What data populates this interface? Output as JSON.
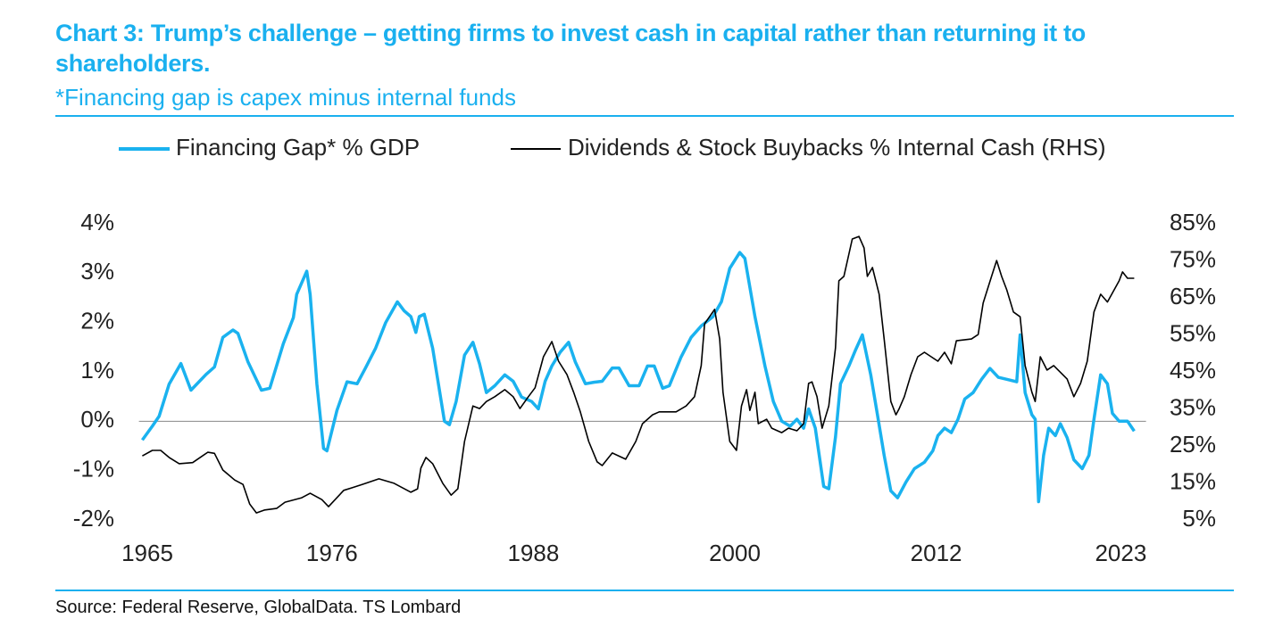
{
  "chart_data": {
    "type": "line",
    "title": "Chart 3: Trump’s challenge – getting firms to invest cash in capital rather than returning it to shareholders.",
    "subtitle": "*Financing gap is capex minus internal funds",
    "source": "Source: Federal Reserve, GlobalData. TS Lombard",
    "legend": "top",
    "xlim": [
      1964.5,
      2024.5
    ],
    "xticks": [
      1965,
      1976,
      1988,
      2000,
      2012,
      2023
    ],
    "ylim": [
      -2,
      4
    ],
    "yticks": [
      {
        "value": 4,
        "label": "4%"
      },
      {
        "value": 3,
        "label": "3%"
      },
      {
        "value": 2,
        "label": "2%"
      },
      {
        "value": 1,
        "label": "1%"
      },
      {
        "value": 0,
        "label": "0%"
      },
      {
        "value": -1,
        "label": "-1%"
      },
      {
        "value": -2,
        "label": "-2%"
      }
    ],
    "y2lim": [
      5,
      85
    ],
    "y2ticks": [
      {
        "value": 85,
        "label": "85%"
      },
      {
        "value": 75,
        "label": "75%"
      },
      {
        "value": 65,
        "label": "65%"
      },
      {
        "value": 55,
        "label": "55%"
      },
      {
        "value": 45,
        "label": "45%"
      },
      {
        "value": 35,
        "label": "35%"
      },
      {
        "value": 25,
        "label": "25%"
      },
      {
        "value": 15,
        "label": "15%"
      },
      {
        "value": 5,
        "label": "5%"
      }
    ],
    "series": [
      {
        "name": "Financing Gap* % GDP",
        "color": "#1ab2ef",
        "axis": "y",
        "x": [
          1964.7,
          1965.3,
          1965.7,
          1966.3,
          1967.0,
          1967.6,
          1968.5,
          1969.0,
          1969.5,
          1970.1,
          1970.4,
          1971.0,
          1971.8,
          1972.3,
          1973.1,
          1973.7,
          1973.9,
          1974.5,
          1974.7,
          1975.1,
          1975.5,
          1975.7,
          1976.3,
          1976.9,
          1977.5,
          1978.0,
          1978.6,
          1979.2,
          1979.9,
          1980.3,
          1980.7,
          1981.0,
          1981.2,
          1981.5,
          1982.0,
          1982.7,
          1983.0,
          1983.4,
          1983.9,
          1984.4,
          1984.8,
          1985.2,
          1985.7,
          1986.3,
          1986.8,
          1987.3,
          1987.9,
          1988.3,
          1988.7,
          1989.1,
          1989.6,
          1990.1,
          1990.5,
          1991.1,
          1991.6,
          1992.1,
          1992.7,
          1993.1,
          1993.7,
          1994.3,
          1994.8,
          1995.2,
          1995.7,
          1996.1,
          1996.8,
          1997.4,
          1998.0,
          1998.7,
          1999.2,
          1999.7,
          2000.3,
          2000.6,
          2001.2,
          2001.8,
          2002.3,
          2002.8,
          2003.3,
          2003.7,
          2004.1,
          2004.4,
          2004.8,
          2005.3,
          2005.6,
          2006.0,
          2006.3,
          2006.8,
          2007.2,
          2007.6,
          2008.1,
          2008.5,
          2008.9,
          2009.3,
          2009.7,
          2010.2,
          2010.7,
          2011.3,
          2011.8,
          2012.1,
          2012.5,
          2012.9,
          2013.3,
          2013.7,
          2014.2,
          2014.7,
          2015.2,
          2015.7,
          2016.2,
          2016.8,
          2017.0,
          2017.3,
          2017.7,
          2017.9,
          2018.1,
          2018.4,
          2018.7,
          2019.1,
          2019.4,
          2019.8,
          2020.2,
          2020.7,
          2021.1,
          2021.4,
          2021.8,
          2022.2,
          2022.5,
          2022.9,
          2023.4,
          2023.8
        ],
        "values": [
          -0.38,
          -0.1,
          0.1,
          0.75,
          1.17,
          0.63,
          0.95,
          1.1,
          1.7,
          1.85,
          1.78,
          1.2,
          0.63,
          0.67,
          1.57,
          2.1,
          2.57,
          3.04,
          2.57,
          0.76,
          -0.55,
          -0.6,
          0.22,
          0.8,
          0.76,
          1.08,
          1.48,
          2.0,
          2.42,
          2.24,
          2.12,
          1.8,
          2.12,
          2.17,
          1.48,
          0,
          -0.07,
          0.4,
          1.34,
          1.6,
          1.16,
          0.58,
          0.72,
          0.94,
          0.81,
          0.49,
          0.4,
          0.25,
          0.81,
          1.12,
          1.4,
          1.6,
          1.2,
          0.76,
          0.79,
          0.81,
          1.08,
          1.08,
          0.72,
          0.72,
          1.12,
          1.12,
          0.67,
          0.72,
          1.3,
          1.7,
          1.93,
          2.12,
          2.42,
          3.1,
          3.42,
          3.3,
          2.12,
          1.12,
          0.4,
          0,
          -0.1,
          0.04,
          -0.14,
          0.25,
          -0.14,
          -1.32,
          -1.37,
          -0.32,
          0.76,
          1.12,
          1.45,
          1.75,
          0.94,
          0.13,
          -0.69,
          -1.41,
          -1.55,
          -1.23,
          -0.96,
          -0.83,
          -0.6,
          -0.29,
          -0.14,
          -0.23,
          0.04,
          0.45,
          0.58,
          0.85,
          1.07,
          0.89,
          0.85,
          0.8,
          1.75,
          0.58,
          0.13,
          0.04,
          -1.63,
          -0.69,
          -0.14,
          -0.29,
          -0.05,
          -0.33,
          -0.78,
          -0.96,
          -0.69,
          0.04,
          0.94,
          0.76,
          0.16,
          0,
          0,
          -0.2
        ]
      },
      {
        "name": "Dividends & Stock Buybacks % Internal Cash (RHS)",
        "color": "#000000",
        "axis": "y2",
        "x": [
          1964.7,
          1965.3,
          1965.8,
          1966.3,
          1966.9,
          1967.7,
          1968.6,
          1969.0,
          1969.5,
          1970.2,
          1970.7,
          1971.1,
          1971.5,
          1972.0,
          1972.7,
          1973.2,
          1974.2,
          1974.7,
          1975.4,
          1975.8,
          1976.7,
          1977.2,
          1977.8,
          1978.8,
          1979.7,
          1980.7,
          1981.1,
          1981.3,
          1981.6,
          1982.0,
          1982.6,
          1983.1,
          1983.5,
          1983.9,
          1984.4,
          1984.8,
          1985.2,
          1985.7,
          1986.3,
          1986.8,
          1987.2,
          1987.7,
          1988.1,
          1988.6,
          1989.1,
          1989.5,
          1990.0,
          1990.4,
          1990.8,
          1991.3,
          1991.8,
          1992.1,
          1992.7,
          1993.5,
          1994.1,
          1994.5,
          1995.1,
          1995.5,
          1996.5,
          1997.1,
          1997.6,
          1998.0,
          1998.2,
          1998.8,
          1999.1,
          1999.3,
          1999.7,
          2000.1,
          2000.4,
          2000.7,
          2000.9,
          2001.2,
          2001.4,
          2001.9,
          2002.2,
          2002.8,
          2003.2,
          2003.7,
          2004.1,
          2004.4,
          2004.6,
          2004.9,
          2005.2,
          2005.6,
          2006.0,
          2006.2,
          2006.5,
          2006.8,
          2007.0,
          2007.4,
          2007.7,
          2007.9,
          2008.2,
          2008.6,
          2008.9,
          2009.3,
          2009.6,
          2009.8,
          2010.1,
          2010.5,
          2010.9,
          2011.3,
          2012.1,
          2012.5,
          2012.9,
          2013.2,
          2014.1,
          2014.5,
          2014.8,
          2015.3,
          2015.6,
          2015.9,
          2016.2,
          2016.6,
          2017.0,
          2017.3,
          2017.7,
          2017.9,
          2018.2,
          2018.6,
          2019.0,
          2019.8,
          2020.2,
          2020.6,
          2021.0,
          2021.4,
          2021.8,
          2022.2,
          2022.9,
          2023.1,
          2023.4,
          2023.8
        ],
        "values": [
          22.3,
          23.8,
          23.8,
          21.9,
          20.2,
          20.5,
          23.3,
          23.0,
          18.5,
          15.8,
          14.6,
          9.3,
          6.9,
          7.7,
          8.1,
          9.8,
          11.0,
          12.2,
          10.5,
          8.6,
          13.0,
          13.7,
          14.6,
          16.1,
          14.9,
          12.5,
          13.4,
          19.0,
          21.9,
          20.2,
          14.9,
          11.7,
          13.4,
          26.2,
          35.8,
          35.1,
          37.0,
          38.3,
          40.2,
          38.3,
          35.1,
          38.3,
          40.7,
          49.1,
          53.2,
          47.9,
          44.3,
          39.5,
          34.2,
          26.2,
          20.7,
          19.7,
          23.1,
          21.4,
          26.2,
          31.0,
          33.4,
          34.2,
          34.2,
          35.8,
          38.3,
          46.7,
          58.0,
          61.9,
          53.9,
          39.5,
          26.2,
          23.8,
          35.8,
          40.2,
          34.6,
          39.5,
          31.0,
          32.2,
          29.8,
          28.6,
          29.8,
          29.1,
          31.0,
          41.9,
          42.3,
          38.3,
          29.8,
          35.8,
          51.5,
          69.6,
          70.8,
          76.8,
          80.9,
          81.6,
          78.5,
          70.8,
          73.2,
          66.0,
          53.9,
          37.0,
          33.4,
          35.1,
          38.3,
          44.3,
          49.1,
          50.3,
          47.9,
          50.3,
          47.2,
          53.4,
          53.9,
          55.1,
          63.6,
          70.8,
          75.1,
          70.8,
          67.2,
          61.2,
          59.9,
          46.7,
          39.5,
          37.0,
          49.1,
          45.5,
          46.7,
          43.1,
          38.3,
          41.9,
          47.9,
          61.2,
          66.0,
          63.9,
          69.6,
          72.0,
          70.3,
          70.3
        ]
      }
    ]
  }
}
